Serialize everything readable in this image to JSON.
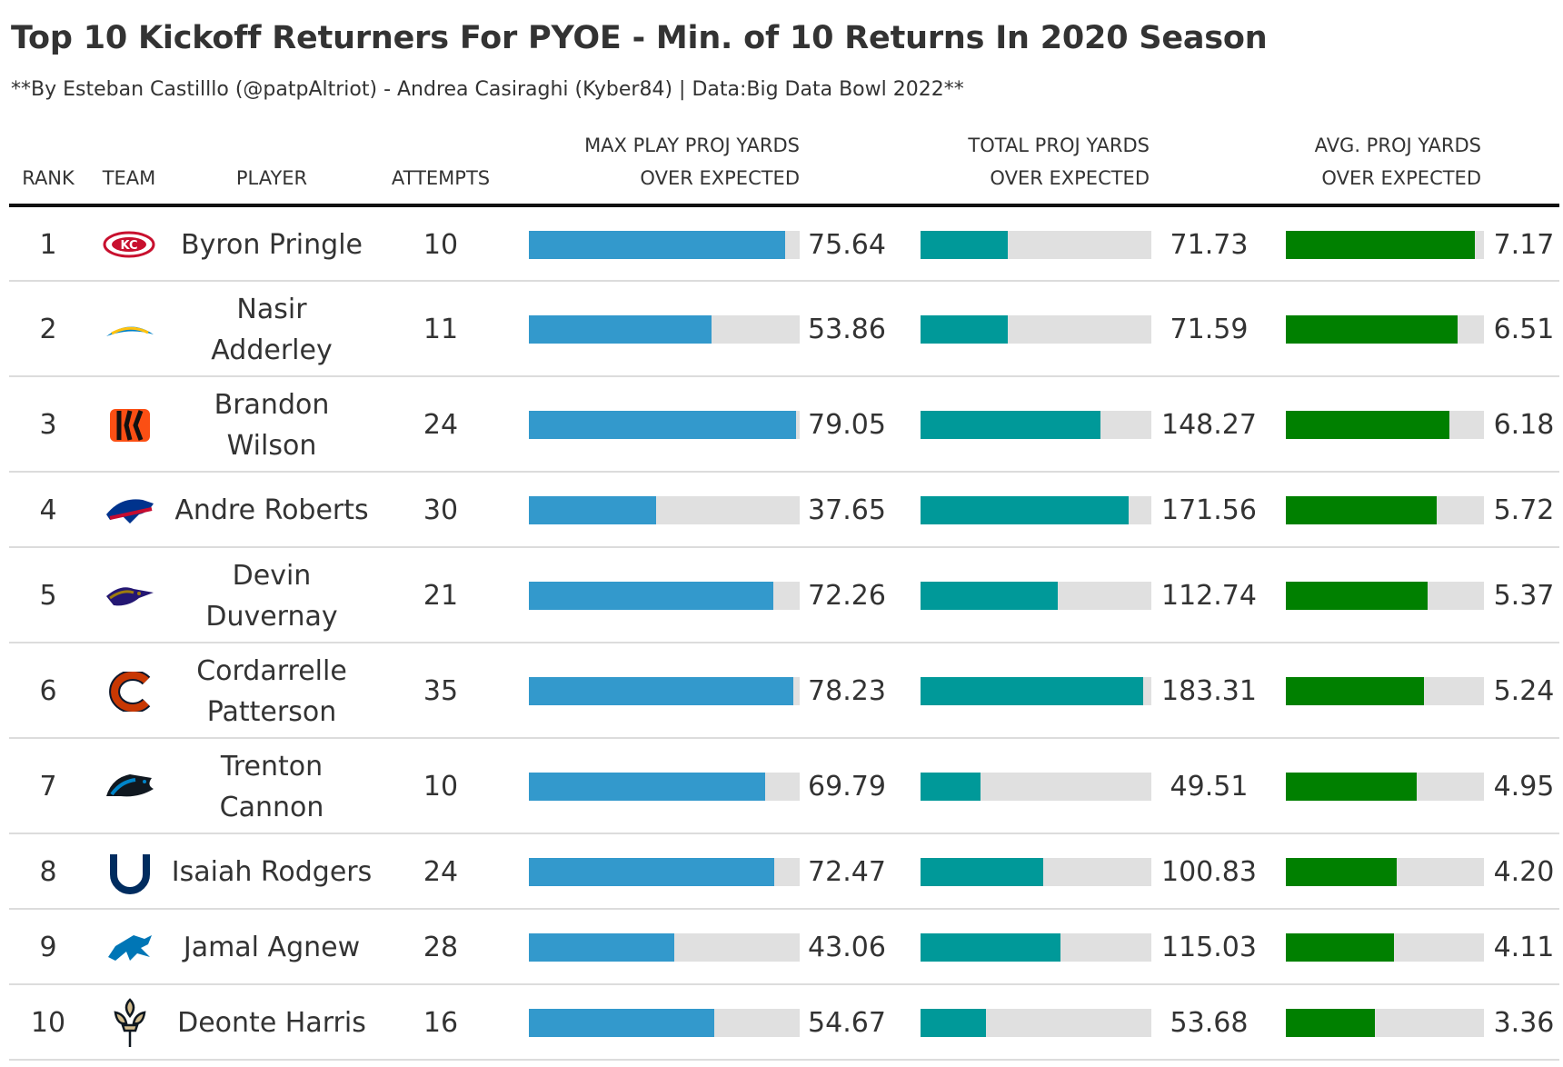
{
  "chart_data": {
    "type": "table",
    "title": "Top 10 Kickoff Returners For PYOE - Min. of 10 Returns In 2020 Season",
    "subtitle": "**By Esteban Castilllo (@patpAltriot) - Andrea Casiraghi (Kyber84) | Data:Big Data Bowl 2022**",
    "columns": {
      "rank": "RANK",
      "team": "TEAM",
      "player": "PLAYER",
      "attempts": "ATTEMPTS",
      "max_line1": "MAX PLAY PROJ YARDS",
      "max_line2": "OVER EXPECTED",
      "total_line1": "TOTAL PROJ YARDS",
      "total_line2": "OVER EXPECTED",
      "avg_line1": "AVG. PROJ YARDS",
      "avg_line2": "OVER EXPECTED"
    },
    "colors": {
      "max": "#3399cc",
      "total": "#009999",
      "avg": "#008000",
      "track": "#e0e0e0"
    },
    "rows": [
      {
        "rank": "1",
        "team_icon": "chiefs-logo-icon",
        "player_line1": "Byron Pringle",
        "player_line2": "",
        "attempts": "10",
        "max": 75.64,
        "max_label": "75.64",
        "total": 71.73,
        "total_label": "71.73",
        "avg": 7.17,
        "avg_label": "7.17"
      },
      {
        "rank": "2",
        "team_icon": "chargers-logo-icon",
        "player_line1": "Nasir",
        "player_line2": "Adderley",
        "attempts": "11",
        "max": 53.86,
        "max_label": "53.86",
        "total": 71.59,
        "total_label": "71.59",
        "avg": 6.51,
        "avg_label": "6.51"
      },
      {
        "rank": "3",
        "team_icon": "bengals-logo-icon",
        "player_line1": "Brandon",
        "player_line2": "Wilson",
        "attempts": "24",
        "max": 79.05,
        "max_label": "79.05",
        "total": 148.27,
        "total_label": "148.27",
        "avg": 6.18,
        "avg_label": "6.18"
      },
      {
        "rank": "4",
        "team_icon": "bills-logo-icon",
        "player_line1": "Andre Roberts",
        "player_line2": "",
        "attempts": "30",
        "max": 37.65,
        "max_label": "37.65",
        "total": 171.56,
        "total_label": "171.56",
        "avg": 5.72,
        "avg_label": "5.72"
      },
      {
        "rank": "5",
        "team_icon": "ravens-logo-icon",
        "player_line1": "Devin",
        "player_line2": "Duvernay",
        "attempts": "21",
        "max": 72.26,
        "max_label": "72.26",
        "total": 112.74,
        "total_label": "112.74",
        "avg": 5.37,
        "avg_label": "5.37"
      },
      {
        "rank": "6",
        "team_icon": "bears-logo-icon",
        "player_line1": "Cordarrelle",
        "player_line2": "Patterson",
        "attempts": "35",
        "max": 78.23,
        "max_label": "78.23",
        "total": 183.31,
        "total_label": "183.31",
        "avg": 5.24,
        "avg_label": "5.24"
      },
      {
        "rank": "7",
        "team_icon": "panthers-logo-icon",
        "player_line1": "Trenton",
        "player_line2": "Cannon",
        "attempts": "10",
        "max": 69.79,
        "max_label": "69.79",
        "total": 49.51,
        "total_label": "49.51",
        "avg": 4.95,
        "avg_label": "4.95"
      },
      {
        "rank": "8",
        "team_icon": "colts-logo-icon",
        "player_line1": "Isaiah Rodgers",
        "player_line2": "",
        "attempts": "24",
        "max": 72.47,
        "max_label": "72.47",
        "total": 100.83,
        "total_label": "100.83",
        "avg": 4.2,
        "avg_label": "4.20"
      },
      {
        "rank": "9",
        "team_icon": "lions-logo-icon",
        "player_line1": "Jamal Agnew",
        "player_line2": "",
        "attempts": "28",
        "max": 43.06,
        "max_label": "43.06",
        "total": 115.03,
        "total_label": "115.03",
        "avg": 4.11,
        "avg_label": "4.11"
      },
      {
        "rank": "10",
        "team_icon": "saints-logo-icon",
        "player_line1": "Deonte Harris",
        "player_line2": "",
        "attempts": "16",
        "max": 54.67,
        "max_label": "54.67",
        "total": 53.68,
        "total_label": "53.68",
        "avg": 3.36,
        "avg_label": "3.36"
      }
    ]
  }
}
